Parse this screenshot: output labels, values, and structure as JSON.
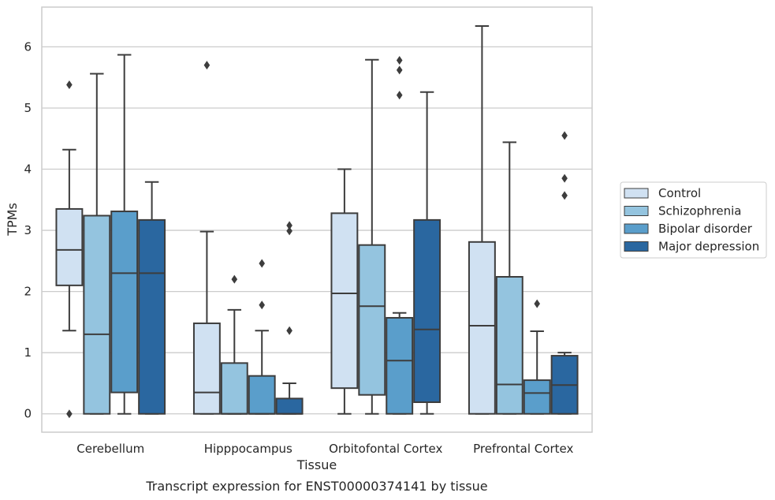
{
  "chart_data": {
    "type": "box",
    "caption": "Transcript expression for ENST00000374141 by tissue",
    "xlabel": "Tissue",
    "ylabel": "TPMs",
    "ylim": [
      -0.3,
      6.65
    ],
    "yticks": [
      0,
      1,
      2,
      3,
      4,
      5,
      6
    ],
    "grid": true,
    "legend_position": "right",
    "categories": [
      "Cerebellum",
      "Hipppocampus",
      "Orbitofontal Cortex",
      "Prefrontal Cortex"
    ],
    "series": [
      {
        "name": "Control",
        "color": "#d0e1f2",
        "boxes": [
          {
            "whislo": 1.36,
            "q1": 2.1,
            "med": 2.68,
            "q3": 3.35,
            "whishi": 4.32,
            "fliers": [
              5.38,
              0.0
            ]
          },
          {
            "whislo": 0.0,
            "q1": 0.0,
            "med": 0.35,
            "q3": 1.48,
            "whishi": 2.98,
            "fliers": [
              5.7
            ]
          },
          {
            "whislo": 0.0,
            "q1": 0.42,
            "med": 1.97,
            "q3": 3.28,
            "whishi": 4.0,
            "fliers": []
          },
          {
            "whislo": 0.0,
            "q1": 0.0,
            "med": 1.44,
            "q3": 2.81,
            "whishi": 6.34,
            "fliers": []
          }
        ]
      },
      {
        "name": "Schizophrenia",
        "color": "#94c4df",
        "boxes": [
          {
            "whislo": 0.0,
            "q1": 0.0,
            "med": 1.3,
            "q3": 3.24,
            "whishi": 5.56,
            "fliers": []
          },
          {
            "whislo": 0.0,
            "q1": 0.0,
            "med": 0.0,
            "q3": 0.83,
            "whishi": 1.7,
            "fliers": [
              2.2
            ]
          },
          {
            "whislo": 0.0,
            "q1": 0.31,
            "med": 1.76,
            "q3": 2.76,
            "whishi": 5.79,
            "fliers": []
          },
          {
            "whislo": 0.0,
            "q1": 0.0,
            "med": 0.48,
            "q3": 2.24,
            "whishi": 4.44,
            "fliers": []
          }
        ]
      },
      {
        "name": "Bipolar disorder",
        "color": "#5a9ecb",
        "boxes": [
          {
            "whislo": 0.0,
            "q1": 0.35,
            "med": 2.3,
            "q3": 3.31,
            "whishi": 5.87,
            "fliers": []
          },
          {
            "whislo": 0.0,
            "q1": 0.0,
            "med": 0.0,
            "q3": 0.62,
            "whishi": 1.36,
            "fliers": [
              2.46,
              1.78
            ]
          },
          {
            "whislo": 0.0,
            "q1": 0.0,
            "med": 0.87,
            "q3": 1.57,
            "whishi": 1.65,
            "fliers": [
              5.78,
              5.62,
              5.21
            ]
          },
          {
            "whislo": 0.0,
            "q1": 0.0,
            "med": 0.34,
            "q3": 0.55,
            "whishi": 1.35,
            "fliers": [
              1.8
            ]
          }
        ]
      },
      {
        "name": "Major depression",
        "color": "#2a67a0",
        "boxes": [
          {
            "whislo": 0.0,
            "q1": 0.0,
            "med": 2.3,
            "q3": 3.17,
            "whishi": 3.79,
            "fliers": []
          },
          {
            "whislo": 0.0,
            "q1": 0.0,
            "med": 0.0,
            "q3": 0.25,
            "whishi": 0.5,
            "fliers": [
              3.08,
              2.99,
              1.36
            ]
          },
          {
            "whislo": 0.0,
            "q1": 0.19,
            "med": 1.38,
            "q3": 3.17,
            "whishi": 5.26,
            "fliers": []
          },
          {
            "whislo": 0.0,
            "q1": 0.0,
            "med": 0.47,
            "q3": 0.95,
            "whishi": 1.0,
            "fliers": [
              4.55,
              3.85,
              3.57
            ]
          }
        ]
      }
    ],
    "line_color": "#3d3d3d",
    "grid_color": "#cccccc",
    "frame_color": "#cccccc"
  }
}
